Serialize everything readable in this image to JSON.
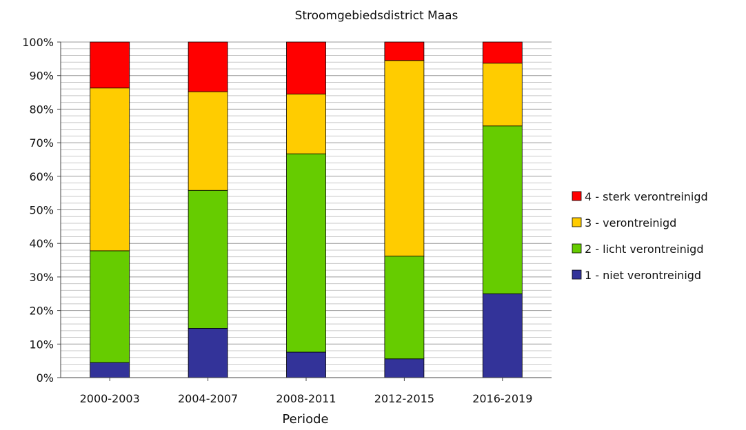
{
  "chart_data": {
    "type": "bar",
    "stacked": true,
    "percent": true,
    "title": "Stroomgebiedsdistrict Maas",
    "xlabel": "Periode",
    "ylabel": "",
    "ylim": [
      0,
      100
    ],
    "yticks": [
      "0%",
      "10%",
      "20%",
      "30%",
      "40%",
      "50%",
      "60%",
      "70%",
      "80%",
      "90%",
      "100%"
    ],
    "grid": true,
    "legend_position": "right",
    "categories": [
      "2000-2003",
      "2004-2007",
      "2008-2011",
      "2012-2015",
      "2016-2019"
    ],
    "series": [
      {
        "name": "1 - niet verontreinigd",
        "color": "#333399",
        "values": [
          4.5,
          14.7,
          7.6,
          5.6,
          25.0
        ]
      },
      {
        "name": "2 - licht verontreinigd",
        "color": "#66cc00",
        "values": [
          33.3,
          41.1,
          59.1,
          30.6,
          50.0
        ]
      },
      {
        "name": "3 - verontreinigd",
        "color": "#ffcc00",
        "values": [
          48.5,
          29.4,
          17.8,
          58.3,
          18.7
        ]
      },
      {
        "name": "4 - sterk verontreinigd",
        "color": "#ff0000",
        "values": [
          13.7,
          14.8,
          15.5,
          5.5,
          6.3
        ]
      }
    ],
    "legend_order": [
      3,
      2,
      1,
      0
    ]
  }
}
